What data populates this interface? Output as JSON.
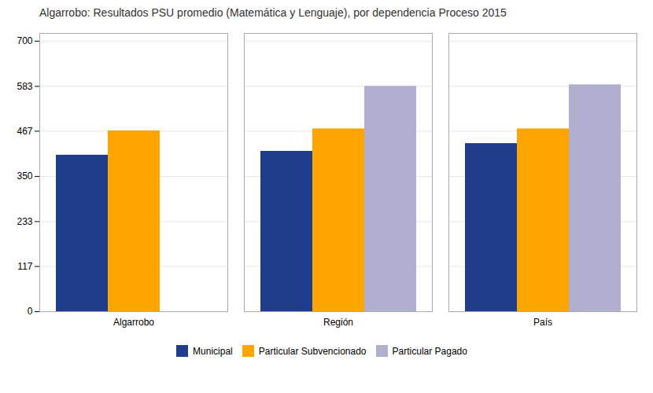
{
  "chart_data": {
    "type": "bar",
    "title": "Algarrobo: Resultados PSU promedio (Matemática y Lenguaje), por dependencia Proceso 2015",
    "categories": [
      "Algarrobo",
      "Región",
      "País"
    ],
    "series": [
      {
        "name": "Municipal",
        "color": "#1f3d8a",
        "values": [
          405,
          415,
          435
        ]
      },
      {
        "name": "Particular Subvencionado",
        "color": "#ffa500",
        "values": [
          468,
          473,
          473
        ]
      },
      {
        "name": "Particular Pagado",
        "color": "#b0afd0",
        "values": [
          null,
          583,
          587
        ]
      }
    ],
    "ylim": [
      0,
      720
    ],
    "yticks": [
      0,
      117,
      233,
      350,
      467,
      583,
      700
    ],
    "grid": true,
    "legend": "bottom"
  }
}
